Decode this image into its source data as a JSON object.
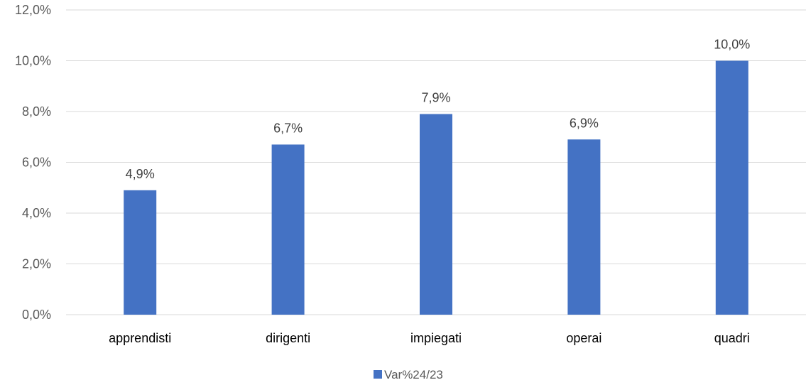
{
  "chart_data": {
    "type": "bar",
    "categories": [
      "apprendisti",
      "dirigenti",
      "impiegati",
      "operai",
      "quadri"
    ],
    "series": [
      {
        "name": "Var%24/23",
        "values": [
          4.9,
          6.7,
          7.9,
          6.9,
          10.0
        ],
        "value_labels": [
          "4,9%",
          "6,7%",
          "7,9%",
          "6,9%",
          "10,0%"
        ],
        "color": "#4472c4"
      }
    ],
    "ylim": [
      0,
      12
    ],
    "y_ticks": [
      0,
      2,
      4,
      6,
      8,
      10,
      12
    ],
    "y_tick_labels": [
      "0,0%",
      "2,0%",
      "4,0%",
      "6,0%",
      "8,0%",
      "10,0%",
      "12,0%"
    ],
    "grid": true,
    "legend_position": "bottom",
    "title": "",
    "xlabel": "",
    "ylabel": ""
  }
}
